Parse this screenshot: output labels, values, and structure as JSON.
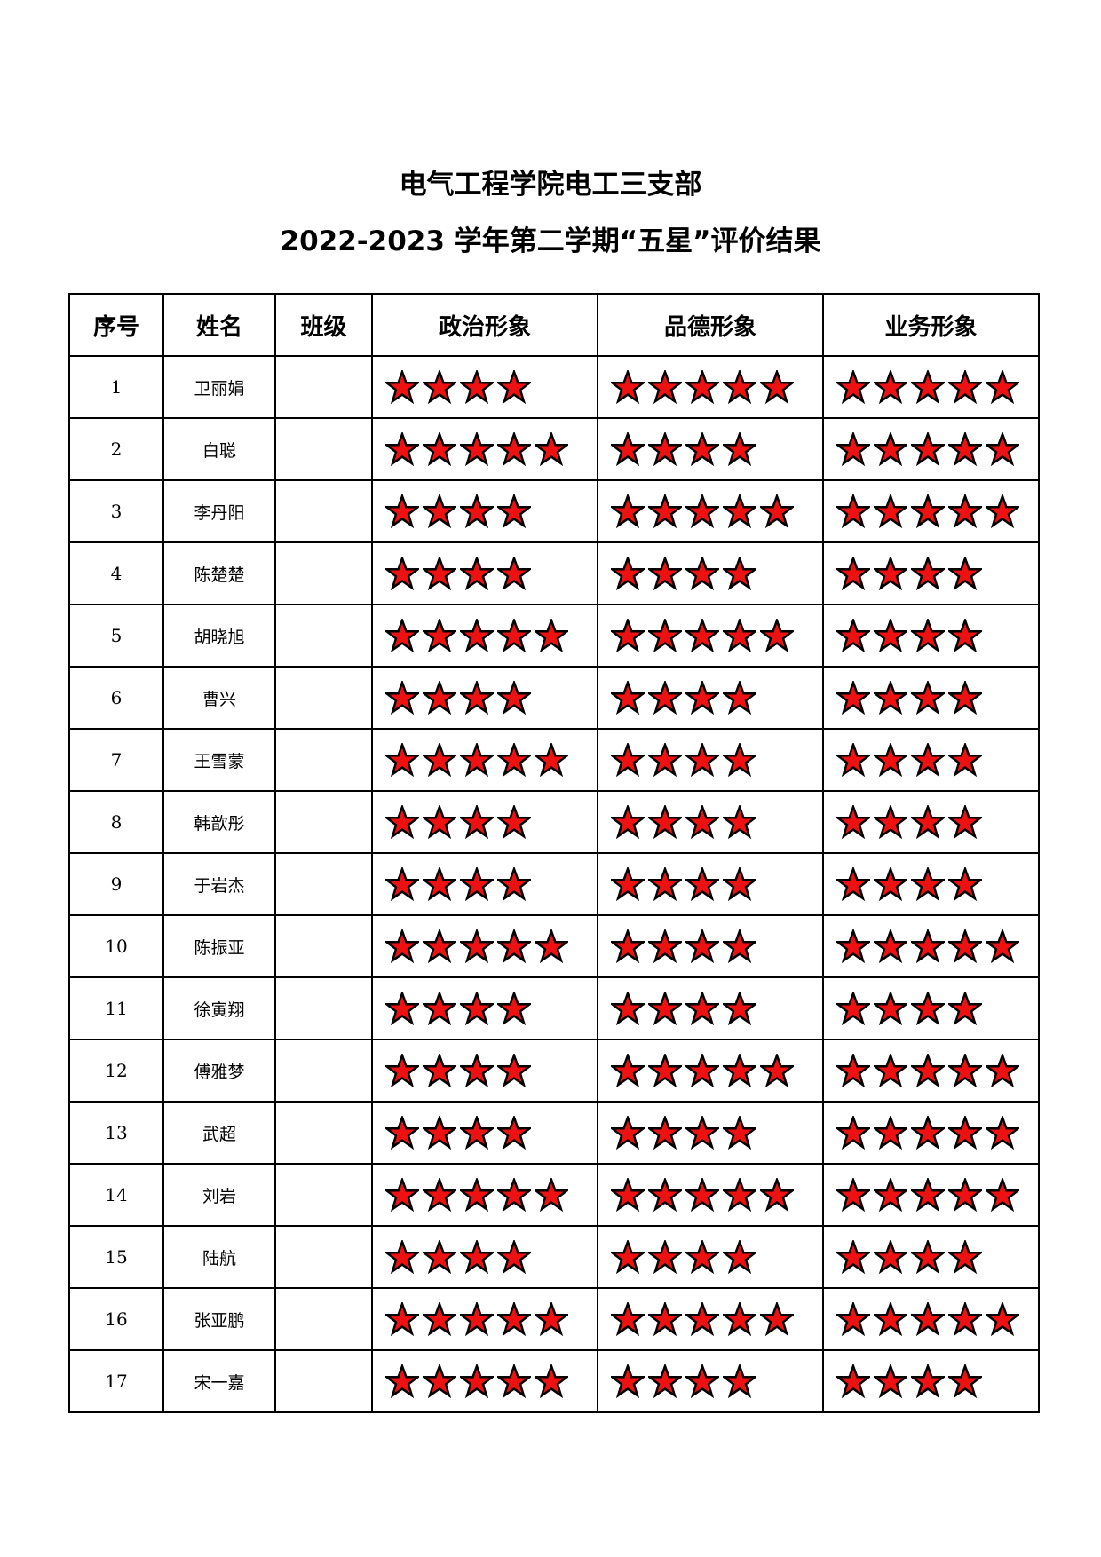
{
  "title_line1": "电气工程学院电工三支部",
  "title_line2": "2022-2023 学年第二学期“五星”评价结果",
  "headers": [
    "序号",
    "姓名",
    "班级",
    "政治形象",
    "品德形象",
    "业务形象"
  ],
  "star_color": "#ee1111",
  "star_max": 5,
  "rows": [
    {
      "no": "1",
      "name": "卫丽娟",
      "class": "",
      "political": 4,
      "moral": 5,
      "professional": 5
    },
    {
      "no": "2",
      "name": "白聪",
      "class": "",
      "political": 5,
      "moral": 4,
      "professional": 5
    },
    {
      "no": "3",
      "name": "李丹阳",
      "class": "",
      "political": 4,
      "moral": 5,
      "professional": 5
    },
    {
      "no": "4",
      "name": "陈楚楚",
      "class": "",
      "political": 4,
      "moral": 4,
      "professional": 4
    },
    {
      "no": "5",
      "name": "胡晓旭",
      "class": "",
      "political": 5,
      "moral": 5,
      "professional": 4
    },
    {
      "no": "6",
      "name": "曹兴",
      "class": "",
      "political": 4,
      "moral": 4,
      "professional": 4
    },
    {
      "no": "7",
      "name": "王雪蒙",
      "class": "",
      "political": 5,
      "moral": 4,
      "professional": 4
    },
    {
      "no": "8",
      "name": "韩歆彤",
      "class": "",
      "political": 4,
      "moral": 4,
      "professional": 4
    },
    {
      "no": "9",
      "name": "于岩杰",
      "class": "",
      "political": 4,
      "moral": 4,
      "professional": 4
    },
    {
      "no": "10",
      "name": "陈振亚",
      "class": "",
      "political": 5,
      "moral": 4,
      "professional": 5
    },
    {
      "no": "11",
      "name": "徐寅翔",
      "class": "",
      "political": 4,
      "moral": 4,
      "professional": 4
    },
    {
      "no": "12",
      "name": "傅雅梦",
      "class": "",
      "political": 4,
      "moral": 5,
      "professional": 5
    },
    {
      "no": "13",
      "name": "武超",
      "class": "",
      "political": 4,
      "moral": 4,
      "professional": 5
    },
    {
      "no": "14",
      "name": "刘岩",
      "class": "",
      "political": 5,
      "moral": 5,
      "professional": 5
    },
    {
      "no": "15",
      "name": "陆航",
      "class": "",
      "political": 4,
      "moral": 4,
      "professional": 4
    },
    {
      "no": "16",
      "name": "张亚鹏",
      "class": "",
      "political": 5,
      "moral": 5,
      "professional": 5
    },
    {
      "no": "17",
      "name": "宋一嘉",
      "class": "",
      "political": 5,
      "moral": 4,
      "professional": 4
    }
  ]
}
